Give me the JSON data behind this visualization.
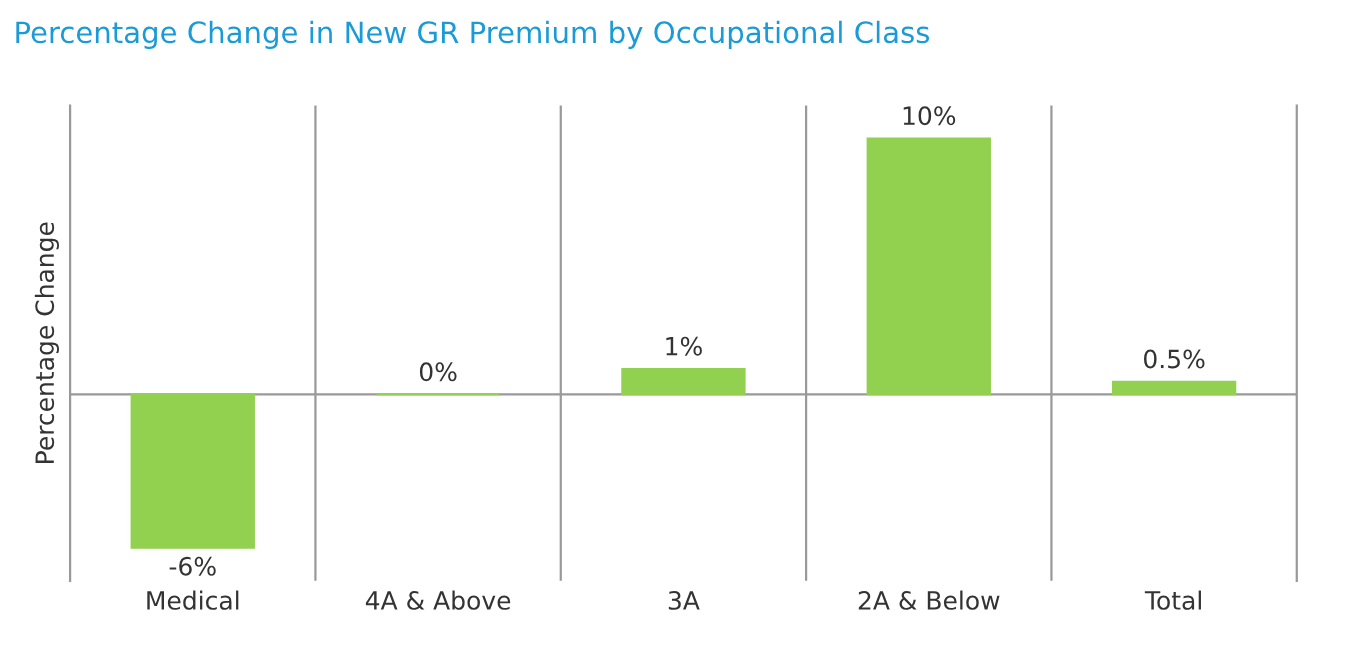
{
  "chart_data": {
    "type": "bar",
    "title": "Percentage Change in New GR Premium by Occupational Class",
    "ylabel": "Percentage Change",
    "categories": [
      "Medical",
      "4A & Above",
      "3A",
      "2A & Below",
      "Total"
    ],
    "values": [
      -6,
      0,
      1,
      10,
      0.5
    ],
    "value_labels": [
      "-6%",
      "0%",
      "1%",
      "10%",
      "0.5%"
    ],
    "color": "#92d050",
    "grid": "x"
  }
}
